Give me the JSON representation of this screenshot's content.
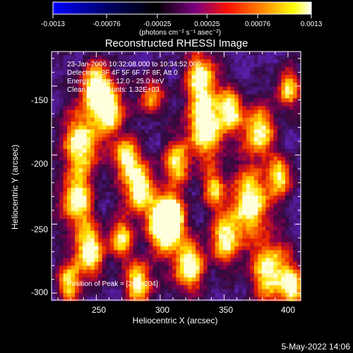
{
  "colorbar": {
    "tick_labels": [
      "-0.0013",
      "-0.00076",
      "-0.00025",
      "0.00025",
      "0.00076",
      "0.0013"
    ],
    "tick_values": [
      -0.0013,
      -0.00076,
      -0.00025,
      0.00025,
      0.00076,
      0.0013
    ],
    "range": [
      -0.0013,
      0.0013
    ],
    "unit_label": "(photons cm⁻² s⁻¹ asec⁻²)",
    "colormap": [
      "#0000ff",
      "#000000",
      "#800080",
      "#ff0000",
      "#ff8000",
      "#ffff00",
      "#ffffff"
    ]
  },
  "plot": {
    "title": "Reconstructed RHESSI Image",
    "info_lines": [
      "23-Jan-2006 10:32:08.000 to 10:34:52.000",
      "Detectors: 3F 4F 5F 6F 7F 8F, Att 0",
      "Energy Range: 12.0 - 25.0 keV",
      "Clean     Total counts: 1.32E+03"
    ],
    "peak_text": "Position of Peak = [262,-204]",
    "x_axis": {
      "label": "Heliocentric X (arcsec)",
      "range": [
        215,
        410
      ],
      "ticks": [
        250,
        300,
        350,
        400
      ],
      "tick_labels": [
        "250",
        "300",
        "350",
        "400"
      ]
    },
    "y_axis": {
      "label": "Heliocentric Y (arcsec)",
      "range": [
        -305,
        -125
      ],
      "ticks": [
        -150,
        -200,
        -250,
        -300
      ],
      "tick_labels": [
        "-150",
        "-200",
        "-250",
        "-300"
      ]
    }
  },
  "footer": {
    "date": "5-May-2022 14:06"
  }
}
